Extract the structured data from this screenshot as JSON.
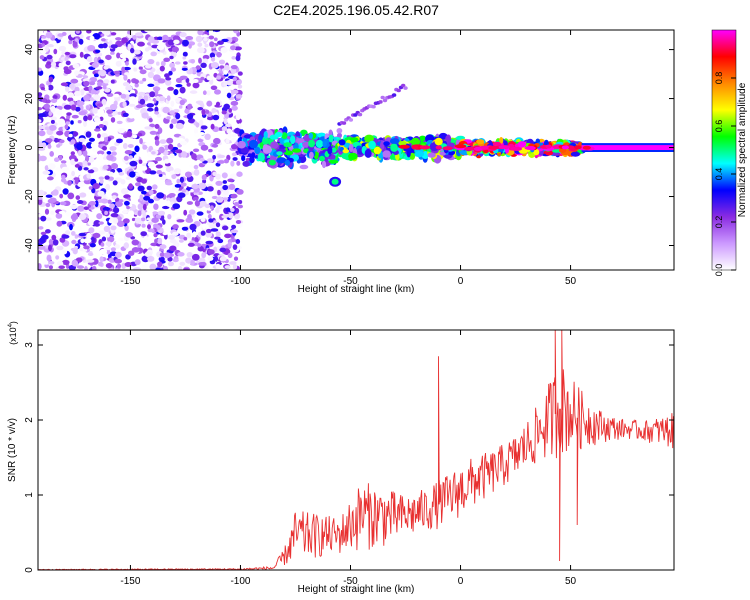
{
  "figure": {
    "title": "C2E4.2025.196.05.42.R07"
  },
  "chart_data": [
    {
      "type": "heatmap",
      "xlabel": "Height of straight line (km)",
      "ylabel": "Frequency (Hz)",
      "xlim": [
        -192,
        97
      ],
      "ylim": [
        -50,
        48
      ],
      "x_ticks": [
        -150,
        -100,
        -50,
        0,
        50
      ],
      "y_ticks": [
        -40,
        -20,
        0,
        20,
        40
      ],
      "colorbar": {
        "label": "Normalized spectral amplitude",
        "range": [
          0.0,
          1.0
        ],
        "ticks": [
          "0.0",
          "0.2",
          "0.4",
          "0.6",
          "0.8"
        ],
        "colors": [
          "#ffffff",
          "#cc99ff",
          "#8a2be2",
          "#0000ff",
          "#00ffff",
          "#00ff00",
          "#ffff00",
          "#ff8800",
          "#ff0000",
          "#ff00ff"
        ]
      },
      "regions": [
        {
          "x": [
            -192,
            -100
          ],
          "frequency": [
            -50,
            48
          ],
          "amplitude": 0.15,
          "pattern": "scattered noise"
        },
        {
          "x": [
            -100,
            -55
          ],
          "frequency": [
            -8,
            8
          ],
          "amplitude": 0.5,
          "pattern": "echo trace"
        },
        {
          "x": [
            -55,
            0
          ],
          "frequency": [
            -5,
            5
          ],
          "amplitude": 0.6,
          "pattern": "echo trace"
        },
        {
          "x": [
            0,
            55
          ],
          "frequency": [
            -3,
            3
          ],
          "amplitude": 0.9,
          "pattern": "echo trace"
        },
        {
          "x": [
            55,
            97
          ],
          "frequency": [
            -1,
            1
          ],
          "amplitude": 1.0,
          "pattern": "steady line"
        }
      ],
      "features": [
        {
          "x": [
            -55,
            -25
          ],
          "frequency": [
            9,
            25
          ],
          "amplitude": 0.2,
          "label": "faint branch"
        },
        {
          "x": -57,
          "frequency": -14,
          "amplitude": 0.5,
          "label": "blob"
        }
      ]
    },
    {
      "type": "line",
      "xlabel": "Height of straight line (km)",
      "ylabel": "SNR (10 * v/v)",
      "y_multiplier": "(x10",
      "y_multiplier_exp": "4",
      "y_multiplier_close": ")",
      "xlim": [
        -192,
        97
      ],
      "ylim": [
        0,
        3.2
      ],
      "x_ticks": [
        -150,
        -100,
        -50,
        0,
        50
      ],
      "y_ticks": [
        0,
        1,
        2,
        3
      ],
      "series": [
        {
          "color": "#e83030",
          "envelope": [
            {
              "x": -192,
              "low": 0.0,
              "high": 0.01
            },
            {
              "x": -100,
              "low": 0.0,
              "high": 0.02
            },
            {
              "x": -85,
              "low": 0.0,
              "high": 0.05
            },
            {
              "x": -80,
              "low": 0.05,
              "high": 0.3
            },
            {
              "x": -75,
              "low": 0.1,
              "high": 0.8
            },
            {
              "x": -65,
              "low": 0.15,
              "high": 0.75
            },
            {
              "x": -55,
              "low": 0.2,
              "high": 0.7
            },
            {
              "x": -45,
              "low": 0.25,
              "high": 1.2
            },
            {
              "x": -35,
              "low": 0.3,
              "high": 1.1
            },
            {
              "x": -25,
              "low": 0.4,
              "high": 1.0
            },
            {
              "x": -15,
              "low": 0.5,
              "high": 1.1
            },
            {
              "x": -5,
              "low": 0.6,
              "high": 1.3
            },
            {
              "x": 5,
              "low": 0.8,
              "high": 1.5
            },
            {
              "x": 15,
              "low": 1.0,
              "high": 1.6
            },
            {
              "x": 25,
              "low": 1.2,
              "high": 1.8
            },
            {
              "x": 35,
              "low": 1.4,
              "high": 2.2
            },
            {
              "x": 45,
              "low": 1.5,
              "high": 2.8
            },
            {
              "x": 55,
              "low": 1.6,
              "high": 2.4
            },
            {
              "x": 65,
              "low": 1.7,
              "high": 2.1
            },
            {
              "x": 75,
              "low": 1.75,
              "high": 2.0
            },
            {
              "x": 85,
              "low": 1.7,
              "high": 2.0
            },
            {
              "x": 97,
              "low": 1.6,
              "high": 2.1
            }
          ],
          "spikes": [
            {
              "x": -10,
              "value": 2.85
            },
            {
              "x": 43,
              "value": 3.2
            },
            {
              "x": 46,
              "value": 3.2
            },
            {
              "x": 45,
              "value": 0.12
            },
            {
              "x": 53,
              "value": 0.6
            }
          ]
        }
      ]
    }
  ]
}
